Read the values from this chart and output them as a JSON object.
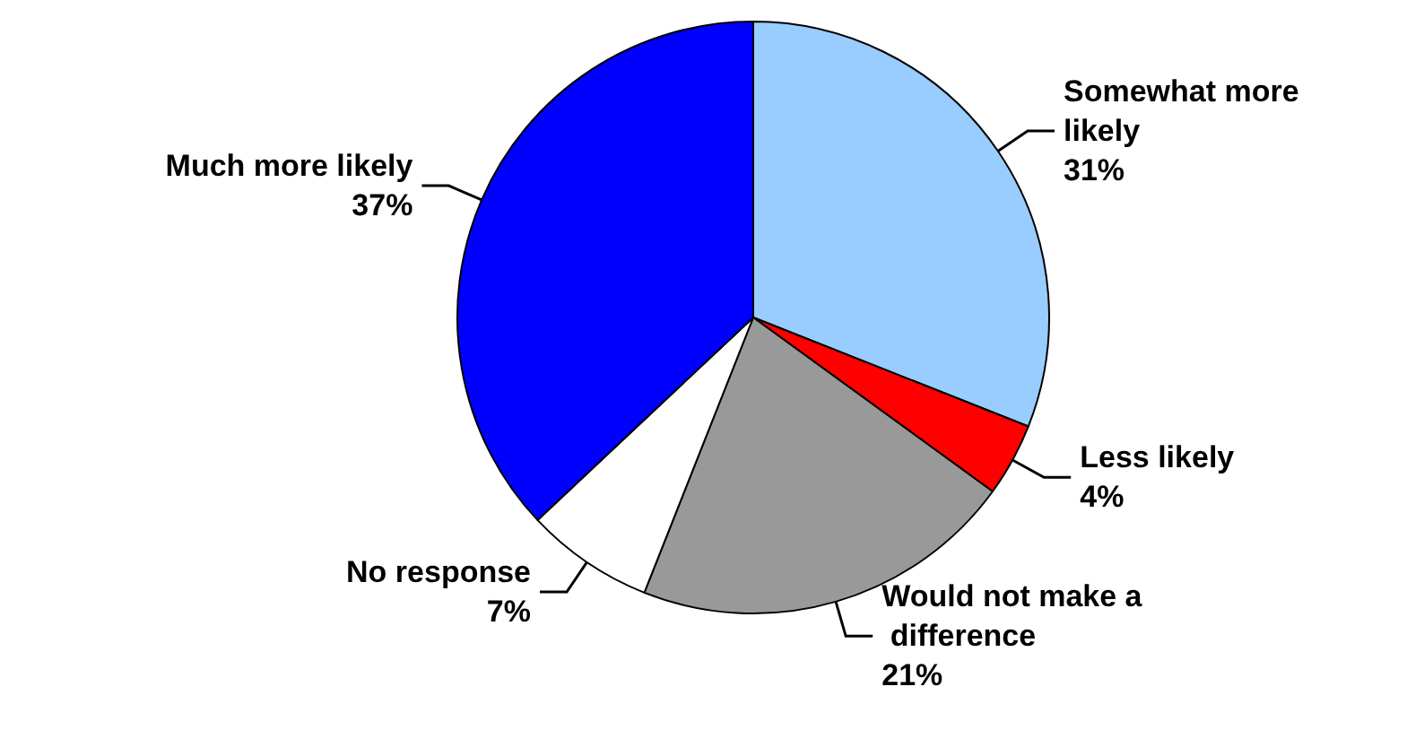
{
  "chart_data": {
    "type": "pie",
    "categories": [
      "Somewhat more likely",
      "Less likely",
      "Would not make a difference",
      "No response",
      "Much more likely"
    ],
    "values": [
      31,
      4,
      21,
      7,
      37
    ],
    "value_labels": [
      "31%",
      "4%",
      "21%",
      "7%",
      "37%"
    ],
    "colors": [
      "#99ccff",
      "#ff0000",
      "#999999",
      "#ffffff",
      "#0000ff"
    ],
    "legend": false
  }
}
